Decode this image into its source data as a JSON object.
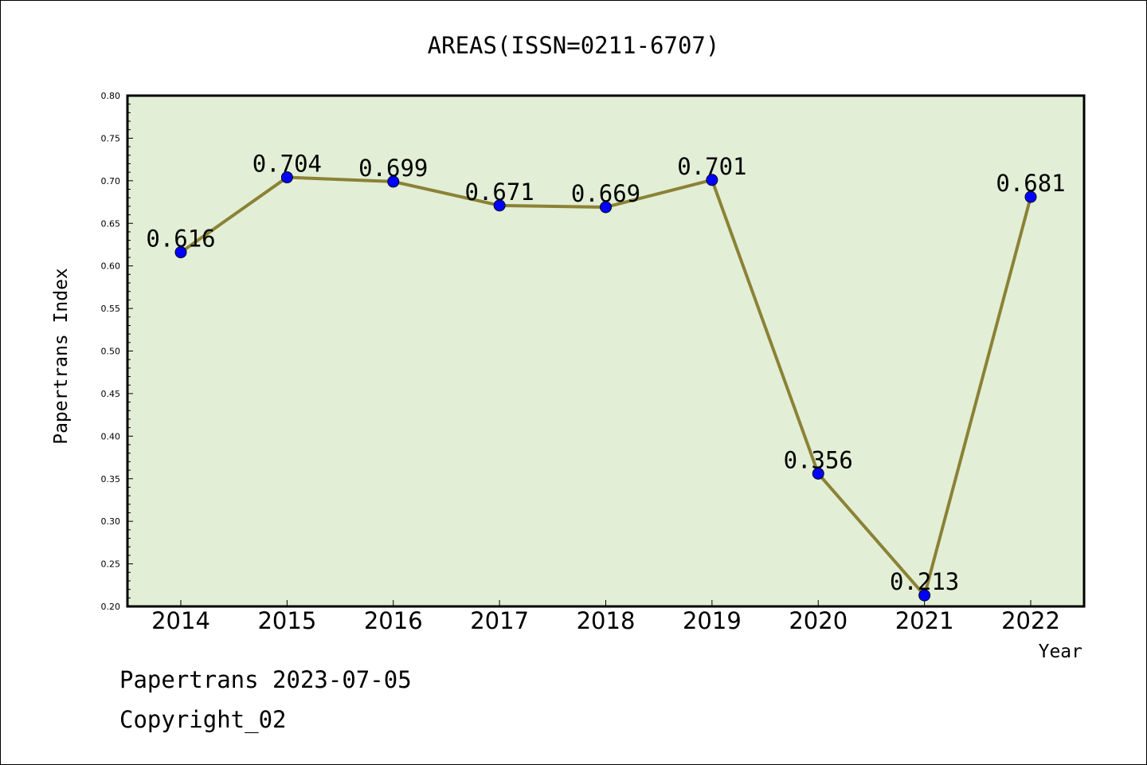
{
  "chart_data": {
    "type": "line",
    "title": "AREAS(ISSN=0211-6707)",
    "xlabel": "Year",
    "ylabel": "Papertrans Index",
    "categories": [
      "2014",
      "2015",
      "2016",
      "2017",
      "2018",
      "2019",
      "2020",
      "2021",
      "2022"
    ],
    "series": [
      {
        "values": [
          0.616,
          0.704,
          0.699,
          0.671,
          0.669,
          0.701,
          0.356,
          0.213,
          0.681
        ]
      }
    ],
    "data_labels": [
      "0.616",
      "0.704",
      "0.699",
      "0.671",
      "0.669",
      "0.701",
      "0.356",
      "0.213",
      "0.681"
    ],
    "ylim": [
      0.2,
      0.8
    ],
    "yticks": [
      "0.20",
      "0.25",
      "0.30",
      "0.35",
      "0.40",
      "0.45",
      "0.50",
      "0.55",
      "0.60",
      "0.65",
      "0.70",
      "0.75",
      "0.80"
    ],
    "grid": false,
    "legend": "none",
    "colors": {
      "plot_bg": "#e2efd6",
      "line": "#8b8236",
      "marker": "#0000ff"
    }
  },
  "footer": {
    "line1": "Papertrans 2023-07-05",
    "line2": "Copyright_02"
  }
}
